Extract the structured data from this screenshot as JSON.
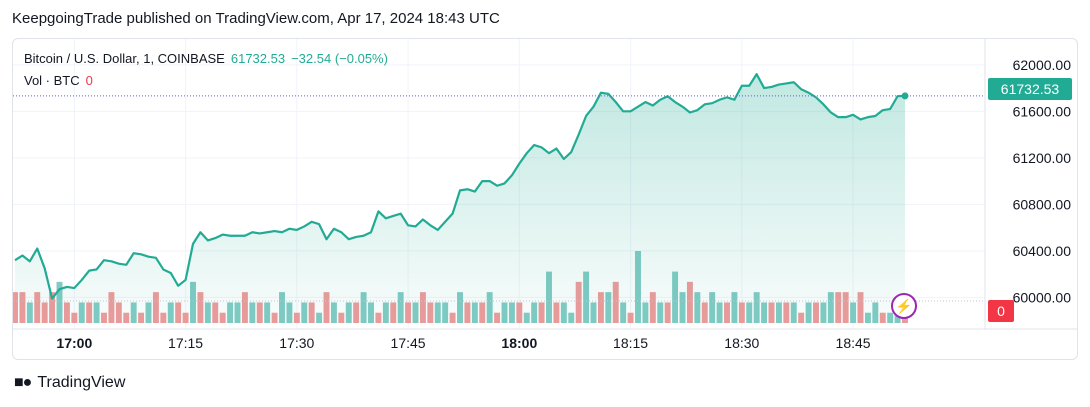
{
  "caption": "KeepgoingTrade published on TradingView.com, Apr 17, 2024 18:43 UTC",
  "legend": {
    "symbol": "Bitcoin / U.S. Dollar, 1, COINBASE",
    "last": "61732.53",
    "change": "−32.54 (−0.05%)",
    "vol_label": "Vol · BTC",
    "vol_value": "0"
  },
  "brand": "TradingView",
  "colors": {
    "up": "#22ab94",
    "down": "#f23645",
    "line": "#22ab94",
    "fill": "#22ab94",
    "vol_up": "#80cbc4",
    "vol_down": "#ef9a9a"
  },
  "chart_data": {
    "type": "area",
    "title": "Bitcoin / U.S. Dollar, 1, COINBASE",
    "y_ticks": [
      "62000.00",
      "61600.00",
      "61200.00",
      "60800.00",
      "60400.00",
      "60000.00"
    ],
    "y_tick_values": [
      62000,
      61600,
      61200,
      60800,
      60400,
      60000
    ],
    "x_ticks": [
      {
        "label": "17:00",
        "bold": true
      },
      {
        "label": "17:15",
        "bold": false
      },
      {
        "label": "17:30",
        "bold": false
      },
      {
        "label": "17:45",
        "bold": false
      },
      {
        "label": "18:00",
        "bold": true
      },
      {
        "label": "18:15",
        "bold": false
      },
      {
        "label": "18:30",
        "bold": false
      },
      {
        "label": "18:45",
        "bold": false
      }
    ],
    "ylim": [
      59900,
      62050
    ],
    "last_price": 61732.53,
    "price": [
      60320,
      60360,
      60310,
      60420,
      60250,
      59990,
      60070,
      60090,
      60080,
      60150,
      60230,
      60240,
      60320,
      60310,
      60290,
      60280,
      60380,
      60370,
      60350,
      60340,
      60240,
      60210,
      60100,
      60150,
      60460,
      60560,
      60490,
      60510,
      60540,
      60530,
      60530,
      60530,
      60560,
      60550,
      60560,
      60570,
      60560,
      60590,
      60580,
      60610,
      60650,
      60630,
      60500,
      60590,
      60560,
      60500,
      60520,
      60530,
      60560,
      60740,
      60680,
      60700,
      60720,
      60620,
      60610,
      60670,
      60620,
      60580,
      60650,
      60720,
      60920,
      60930,
      60910,
      61000,
      61000,
      60960,
      60980,
      61050,
      61150,
      61240,
      61310,
      61290,
      61240,
      61280,
      61190,
      61250,
      61400,
      61560,
      61640,
      61760,
      61750,
      61680,
      61600,
      61600,
      61640,
      61680,
      61650,
      61700,
      61730,
      61680,
      61640,
      61590,
      61610,
      61660,
      61670,
      61700,
      61720,
      61700,
      61820,
      61820,
      61920,
      61800,
      61810,
      61830,
      61840,
      61850,
      61790,
      61760,
      61720,
      61660,
      61590,
      61550,
      61550,
      61570,
      61530,
      61550,
      61560,
      61610,
      61620,
      61730,
      61732.53
    ],
    "volume_up": [
      0,
      0,
      1,
      0,
      0,
      0,
      1,
      0,
      0,
      1,
      0,
      1,
      0,
      0,
      0,
      0,
      1,
      0,
      1,
      0,
      0,
      1,
      0,
      0,
      1,
      0,
      1,
      0,
      0,
      1,
      1,
      0,
      1,
      0,
      1,
      0,
      1,
      1,
      0,
      1,
      0,
      1,
      0,
      1,
      0,
      1,
      0,
      1,
      1,
      0,
      1,
      0,
      1,
      0,
      1,
      0,
      0,
      1,
      1,
      0,
      1,
      0,
      1,
      0,
      1,
      0,
      1,
      1,
      0,
      1,
      1,
      0,
      1,
      0,
      1,
      1,
      0,
      1,
      1,
      0,
      1,
      0,
      1,
      0,
      1,
      1,
      0,
      1,
      0,
      1,
      1,
      0,
      1,
      0,
      1,
      1,
      0,
      1,
      0,
      1,
      1,
      1,
      0,
      1,
      0,
      1,
      0,
      1,
      0,
      1,
      1,
      0,
      0,
      1,
      0,
      1,
      1,
      0,
      1,
      1,
      0
    ],
    "volume": [
      3,
      3,
      2,
      3,
      2,
      3,
      4,
      2,
      1,
      2,
      2,
      2,
      1,
      3,
      2,
      1,
      2,
      1,
      2,
      3,
      1,
      2,
      2,
      1,
      4,
      3,
      2,
      2,
      1,
      2,
      2,
      3,
      2,
      2,
      2,
      1,
      3,
      2,
      1,
      2,
      2,
      1,
      3,
      2,
      1,
      2,
      2,
      3,
      2,
      1,
      2,
      2,
      3,
      2,
      2,
      3,
      2,
      2,
      2,
      1,
      3,
      2,
      2,
      2,
      3,
      1,
      2,
      2,
      2,
      1,
      2,
      2,
      5,
      2,
      2,
      1,
      4,
      5,
      2,
      3,
      3,
      4,
      2,
      1,
      7,
      2,
      3,
      2,
      2,
      5,
      3,
      4,
      3,
      2,
      3,
      2,
      2,
      3,
      2,
      2,
      3,
      2,
      2,
      2,
      2,
      2,
      1,
      2,
      2,
      2,
      3,
      3,
      3,
      2,
      3,
      1,
      2,
      1,
      1,
      1,
      1
    ]
  }
}
